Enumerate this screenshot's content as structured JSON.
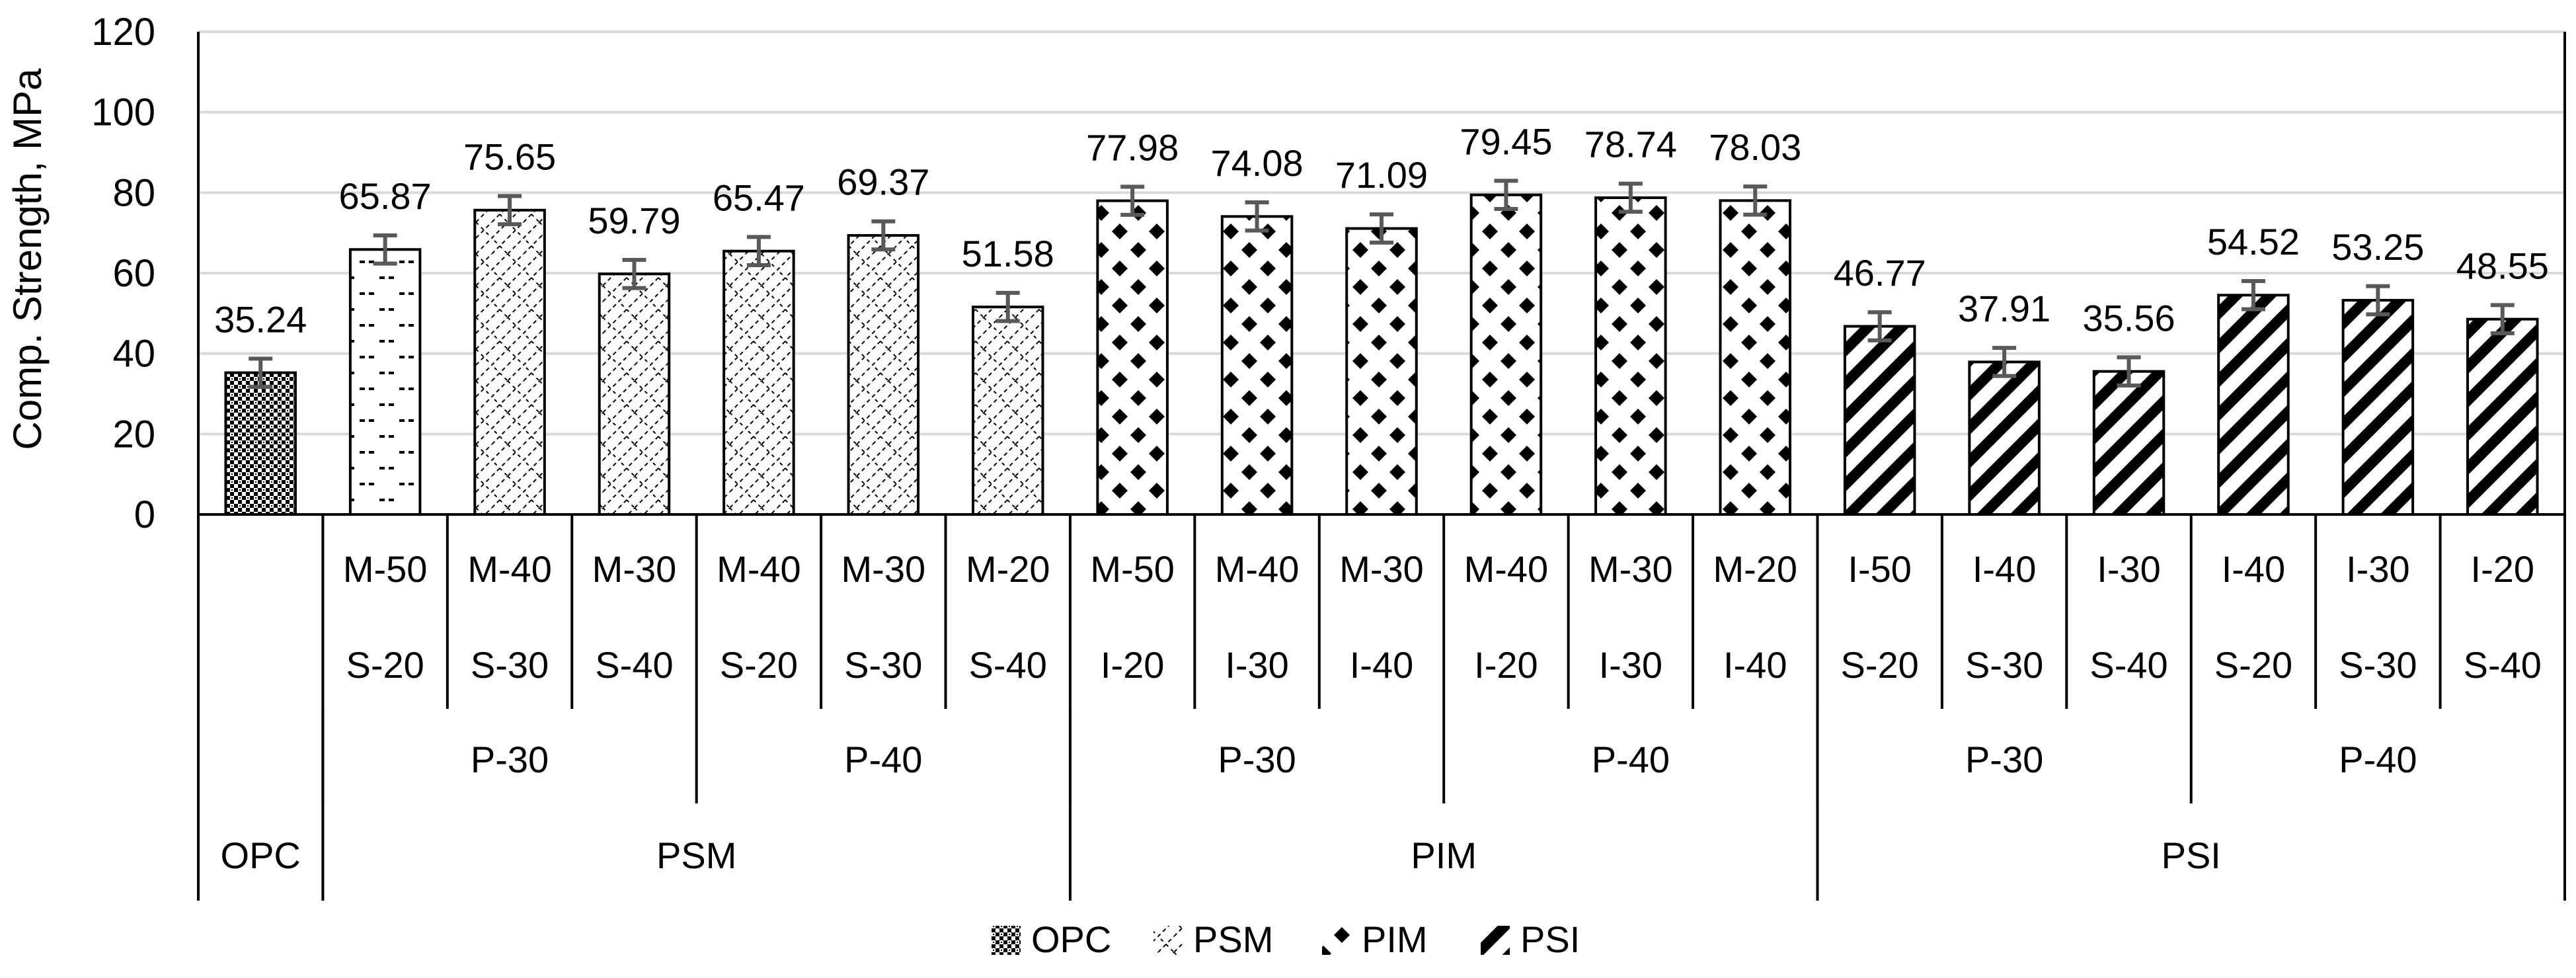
{
  "chart_data": {
    "type": "bar",
    "title": "",
    "xlabel": "",
    "ylabel": "Comp. Strength, MPa",
    "ylim": [
      0,
      120
    ],
    "ytick_step": 20,
    "grid": true,
    "error_bars": true,
    "error_bar_half_range": 3.5,
    "legend_position": "bottom-center",
    "bars": [
      {
        "mix": "",
        "composition": "",
        "group": "OPC",
        "value": 35.24,
        "label": "35.24"
      },
      {
        "mix": "M-50",
        "composition": "S-20",
        "group": "PSM",
        "value": 65.87,
        "label": "65.87"
      },
      {
        "mix": "M-40",
        "composition": "S-30",
        "group": "PSM",
        "value": 75.65,
        "label": "75.65"
      },
      {
        "mix": "M-30",
        "composition": "S-40",
        "group": "PSM",
        "value": 59.79,
        "label": "59.79"
      },
      {
        "mix": "M-40",
        "composition": "S-20",
        "group": "PSM",
        "value": 65.47,
        "label": "65.47"
      },
      {
        "mix": "M-30",
        "composition": "S-30",
        "group": "PSM",
        "value": 69.37,
        "label": "69.37"
      },
      {
        "mix": "M-20",
        "composition": "S-40",
        "group": "PSM",
        "value": 51.58,
        "label": "51.58"
      },
      {
        "mix": "M-50",
        "composition": "I-20",
        "group": "PIM",
        "value": 77.98,
        "label": "77.98"
      },
      {
        "mix": "M-40",
        "composition": "I-30",
        "group": "PIM",
        "value": 74.08,
        "label": "74.08"
      },
      {
        "mix": "M-30",
        "composition": "I-40",
        "group": "PIM",
        "value": 71.09,
        "label": "71.09"
      },
      {
        "mix": "M-40",
        "composition": "I-20",
        "group": "PIM",
        "value": 79.45,
        "label": "79.45"
      },
      {
        "mix": "M-30",
        "composition": "I-30",
        "group": "PIM",
        "value": 78.74,
        "label": "78.74"
      },
      {
        "mix": "M-20",
        "composition": "I-40",
        "group": "PIM",
        "value": 78.03,
        "label": "78.03"
      },
      {
        "mix": "I-50",
        "composition": "S-20",
        "group": "PSI",
        "value": 46.77,
        "label": "46.77"
      },
      {
        "mix": "I-40",
        "composition": "S-30",
        "group": "PSI",
        "value": 37.91,
        "label": "37.91"
      },
      {
        "mix": "I-30",
        "composition": "S-40",
        "group": "PSI",
        "value": 35.56,
        "label": "35.56"
      },
      {
        "mix": "I-40",
        "composition": "S-20",
        "group": "PSI",
        "value": 54.52,
        "label": "54.52"
      },
      {
        "mix": "I-30",
        "composition": "S-30",
        "group": "PSI",
        "value": 53.25,
        "label": "53.25"
      },
      {
        "mix": "I-20",
        "composition": "S-40",
        "group": "PSI",
        "value": 48.55,
        "label": "48.55"
      }
    ],
    "pozzolan_levels": [
      {
        "label": "P-30",
        "start": 1,
        "end": 3
      },
      {
        "label": "P-40",
        "start": 4,
        "end": 6
      },
      {
        "label": "P-30",
        "start": 7,
        "end": 9
      },
      {
        "label": "P-40",
        "start": 10,
        "end": 12
      },
      {
        "label": "P-30",
        "start": 13,
        "end": 15
      },
      {
        "label": "P-40",
        "start": 16,
        "end": 18
      }
    ],
    "groups": [
      {
        "label": "OPC",
        "start": 0,
        "end": 0
      },
      {
        "label": "PSM",
        "start": 1,
        "end": 6
      },
      {
        "label": "PIM",
        "start": 7,
        "end": 12
      },
      {
        "label": "PSI",
        "start": 13,
        "end": 18
      }
    ],
    "legend": [
      {
        "key": "OPC",
        "label": "OPC"
      },
      {
        "key": "PSM",
        "label": "PSM"
      },
      {
        "key": "PIM",
        "label": "PIM"
      },
      {
        "key": "PSI",
        "label": "PSI"
      }
    ]
  }
}
